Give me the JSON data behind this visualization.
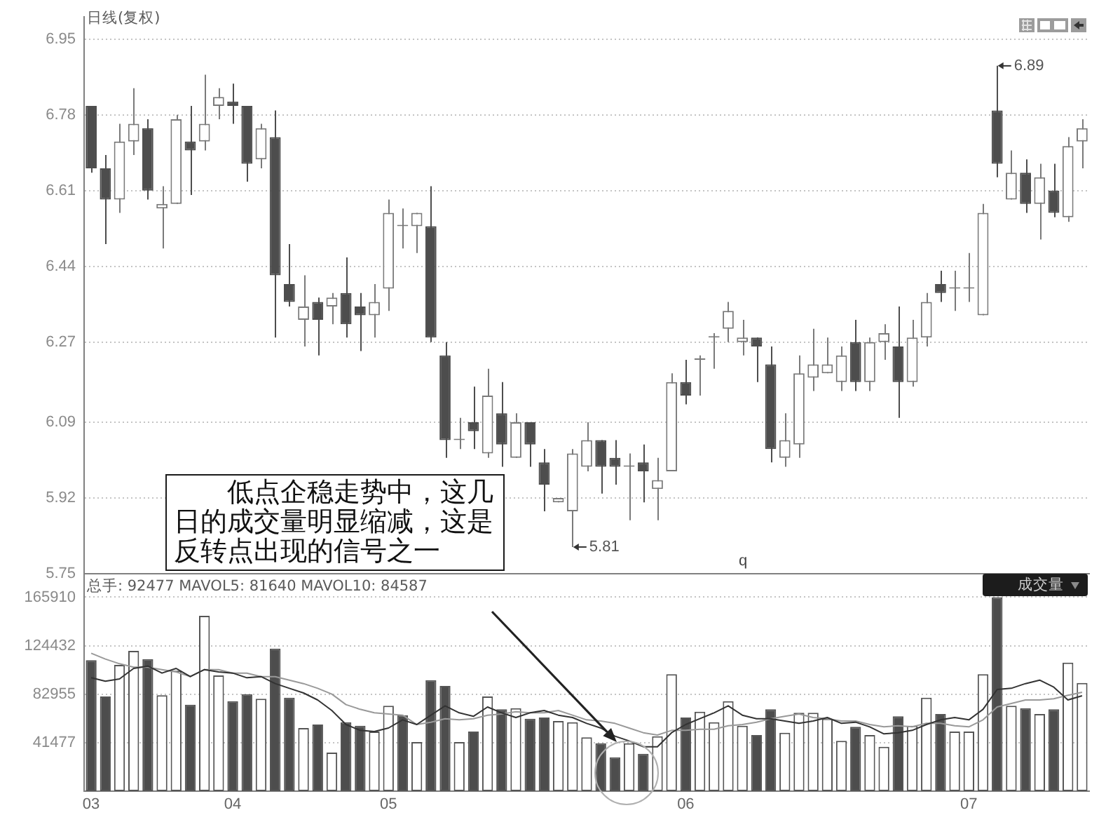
{
  "chart_data": [
    {
      "type": "candlestick",
      "title": "日线(复权)",
      "annotations": [
        "低点企稳走势中，这几日的成交量明显缩减，这是反转点出现的信号之一",
        "q",
        "6.89",
        "5.81"
      ],
      "categories": [
        "03",
        null,
        null,
        null,
        null,
        null,
        null,
        null,
        null,
        null,
        "04",
        null,
        null,
        null,
        null,
        null,
        null,
        null,
        null,
        null,
        null,
        "05",
        null,
        null,
        null,
        null,
        null,
        null,
        null,
        null,
        null,
        null,
        null,
        null,
        null,
        null,
        null,
        null,
        null,
        null,
        null,
        null,
        "06",
        null,
        null,
        null,
        null,
        null,
        null,
        null,
        null,
        null,
        null,
        null,
        null,
        null,
        null,
        null,
        null,
        null,
        null,
        null,
        "07",
        null,
        null,
        null,
        null,
        null,
        null,
        null,
        null
      ],
      "ohlc": [
        [
          6.8,
          6.8,
          6.65,
          6.66
        ],
        [
          6.66,
          6.69,
          6.49,
          6.59
        ],
        [
          6.59,
          6.76,
          6.56,
          6.72
        ],
        [
          6.72,
          6.84,
          6.69,
          6.76
        ],
        [
          6.75,
          6.77,
          6.59,
          6.61
        ],
        [
          6.57,
          6.62,
          6.48,
          6.58
        ],
        [
          6.58,
          6.78,
          6.58,
          6.77
        ],
        [
          6.72,
          6.8,
          6.6,
          6.7
        ],
        [
          6.72,
          6.87,
          6.7,
          6.76
        ],
        [
          6.8,
          6.84,
          6.77,
          6.82
        ],
        [
          6.81,
          6.85,
          6.76,
          6.8
        ],
        [
          6.8,
          6.8,
          6.63,
          6.67
        ],
        [
          6.68,
          6.76,
          6.66,
          6.75
        ],
        [
          6.73,
          6.79,
          6.28,
          6.42
        ],
        [
          6.4,
          6.49,
          6.35,
          6.36
        ],
        [
          6.32,
          6.42,
          6.26,
          6.35
        ],
        [
          6.36,
          6.37,
          6.24,
          6.32
        ],
        [
          6.35,
          6.38,
          6.31,
          6.37
        ],
        [
          6.38,
          6.46,
          6.28,
          6.31
        ],
        [
          6.35,
          6.38,
          6.25,
          6.33
        ],
        [
          6.33,
          6.4,
          6.28,
          6.36
        ],
        [
          6.39,
          6.59,
          6.34,
          6.56
        ],
        [
          6.53,
          6.57,
          6.48,
          6.53
        ],
        [
          6.53,
          6.56,
          6.47,
          6.56
        ],
        [
          6.53,
          6.62,
          6.27,
          6.28
        ],
        [
          6.24,
          6.27,
          6.01,
          6.05
        ],
        [
          6.05,
          6.1,
          6.03,
          6.05
        ],
        [
          6.09,
          6.17,
          6.03,
          6.07
        ],
        [
          6.02,
          6.21,
          6.01,
          6.15
        ],
        [
          6.11,
          6.18,
          5.99,
          6.04
        ],
        [
          6.01,
          6.11,
          6.01,
          6.09
        ],
        [
          6.09,
          6.09,
          5.99,
          6.04
        ],
        [
          6.0,
          6.03,
          5.89,
          5.95
        ],
        [
          5.91,
          5.92,
          5.91,
          5.92
        ],
        [
          5.89,
          6.03,
          5.81,
          6.02
        ],
        [
          5.99,
          6.09,
          5.98,
          6.05
        ],
        [
          6.05,
          6.05,
          5.93,
          5.99
        ],
        [
          6.01,
          6.05,
          5.95,
          5.99
        ],
        [
          5.99,
          6.02,
          5.87,
          5.99
        ],
        [
          6.0,
          6.04,
          5.91,
          5.98
        ],
        [
          5.94,
          6.01,
          5.87,
          5.96
        ],
        [
          5.98,
          6.2,
          5.98,
          6.18
        ],
        [
          6.18,
          6.23,
          6.13,
          6.15
        ],
        [
          6.23,
          6.24,
          6.15,
          6.23
        ],
        [
          6.28,
          6.29,
          6.21,
          6.28
        ],
        [
          6.3,
          6.36,
          6.27,
          6.34
        ],
        [
          6.27,
          6.32,
          6.24,
          6.28
        ],
        [
          6.28,
          6.28,
          6.18,
          6.26
        ],
        [
          6.22,
          6.26,
          6.0,
          6.03
        ],
        [
          6.01,
          6.11,
          5.99,
          6.05
        ],
        [
          6.04,
          6.24,
          6.01,
          6.2
        ],
        [
          6.19,
          6.3,
          6.16,
          6.22
        ],
        [
          6.2,
          6.28,
          6.2,
          6.22
        ],
        [
          6.18,
          6.26,
          6.16,
          6.24
        ],
        [
          6.27,
          6.32,
          6.16,
          6.18
        ],
        [
          6.18,
          6.28,
          6.16,
          6.27
        ],
        [
          6.27,
          6.31,
          6.23,
          6.29
        ],
        [
          6.26,
          6.35,
          6.1,
          6.18
        ],
        [
          6.18,
          6.32,
          6.17,
          6.28
        ],
        [
          6.28,
          6.38,
          6.26,
          6.36
        ],
        [
          6.4,
          6.43,
          6.36,
          6.38
        ],
        [
          6.39,
          6.43,
          6.34,
          6.39
        ],
        [
          6.39,
          6.47,
          6.36,
          6.39
        ],
        [
          6.33,
          6.58,
          6.33,
          6.56
        ],
        [
          6.79,
          6.89,
          6.64,
          6.67
        ],
        [
          6.59,
          6.7,
          6.59,
          6.65
        ],
        [
          6.65,
          6.68,
          6.56,
          6.58
        ],
        [
          6.58,
          6.67,
          6.5,
          6.64
        ],
        [
          6.61,
          6.67,
          6.55,
          6.56
        ],
        [
          6.55,
          6.73,
          6.54,
          6.71
        ],
        [
          6.72,
          6.77,
          6.66,
          6.75
        ]
      ],
      "colors": [
        "#4d4d4d",
        "#4d4d4d",
        "#7a7a7a",
        "#7a7a7a",
        "#4d4d4d",
        "#7a7a7a",
        "#7a7a7a",
        "#4d4d4d",
        "#7a7a7a",
        "#7a7a7a",
        "#4d4d4d",
        "#4d4d4d",
        "#7a7a7a",
        "#4d4d4d",
        "#4d4d4d",
        "#7a7a7a",
        "#4d4d4d",
        "#7a7a7a",
        "#4d4d4d",
        "#4d4d4d",
        "#7a7a7a",
        "#7a7a7a",
        "#7a7a7a",
        "#7a7a7a",
        "#4d4d4d",
        "#4d4d4d",
        "#7a7a7a",
        "#4d4d4d",
        "#7a7a7a",
        "#4d4d4d",
        "#7a7a7a",
        "#4d4d4d",
        "#4d4d4d",
        "#7a7a7a",
        "#7a7a7a",
        "#7a7a7a",
        "#4d4d4d",
        "#4d4d4d",
        "#7a7a7a",
        "#4d4d4d",
        "#7a7a7a",
        "#7a7a7a",
        "#4d4d4d",
        "#7a7a7a",
        "#7a7a7a",
        "#7a7a7a",
        "#7a7a7a",
        "#4d4d4d",
        "#4d4d4d",
        "#7a7a7a",
        "#7a7a7a",
        "#7a7a7a",
        "#7a7a7a",
        "#7a7a7a",
        "#4d4d4d",
        "#7a7a7a",
        "#7a7a7a",
        "#4d4d4d",
        "#7a7a7a",
        "#7a7a7a",
        "#4d4d4d",
        "#7a7a7a",
        "#7a7a7a",
        "#7a7a7a",
        "#4d4d4d",
        "#7a7a7a",
        "#4d4d4d",
        "#7a7a7a",
        "#4d4d4d",
        "#7a7a7a",
        "#7a7a7a"
      ],
      "ylim": [
        5.75,
        7.0
      ],
      "yticks": [
        5.75,
        5.92,
        6.09,
        6.27,
        6.44,
        6.61,
        6.78,
        6.95
      ],
      "grid": "y",
      "tick_labels": "y"
    },
    {
      "type": "bar",
      "subtitle": "总手: 92477 MAVOL5: 81640 MAVOL10: 84587",
      "annotations": [
        "成交量"
      ],
      "categories": [
        "03",
        null,
        null,
        null,
        null,
        null,
        null,
        null,
        null,
        null,
        "04",
        null,
        null,
        null,
        null,
        null,
        null,
        null,
        null,
        null,
        null,
        "05",
        null,
        null,
        null,
        null,
        null,
        null,
        null,
        null,
        null,
        null,
        null,
        null,
        null,
        null,
        null,
        null,
        null,
        null,
        null,
        null,
        "06",
        null,
        null,
        null,
        null,
        null,
        null,
        null,
        null,
        null,
        null,
        null,
        null,
        null,
        null,
        null,
        null,
        null,
        null,
        null,
        "07",
        null,
        null,
        null,
        null,
        null,
        null,
        null,
        null
      ],
      "series": [
        {
          "type": "bar",
          "values": [
            112000,
            81000,
            108000,
            120000,
            113000,
            82000,
            103000,
            74000,
            150000,
            99000,
            77000,
            83000,
            79000,
            122000,
            80000,
            54000,
            57000,
            33000,
            59000,
            56000,
            51000,
            73000,
            65000,
            42000,
            95000,
            90000,
            42000,
            51000,
            81000,
            70000,
            71000,
            62000,
            63000,
            60000,
            59000,
            46000,
            41000,
            29000,
            41000,
            32000,
            47000,
            100000,
            63000,
            68000,
            59000,
            77000,
            56000,
            48000,
            70000,
            50000,
            67000,
            67000,
            62000,
            43000,
            55000,
            48000,
            38000,
            64000,
            56000,
            80000,
            66000,
            51000,
            51000,
            100000,
            165910,
            73000,
            71000,
            66000,
            70000,
            110000,
            92477
          ],
          "colors": [
            "#4d4d4d",
            "#4d4d4d",
            "#ffffff",
            "#ffffff",
            "#4d4d4d",
            "#ffffff",
            "#ffffff",
            "#4d4d4d",
            "#ffffff",
            "#ffffff",
            "#4d4d4d",
            "#4d4d4d",
            "#ffffff",
            "#4d4d4d",
            "#4d4d4d",
            "#ffffff",
            "#4d4d4d",
            "#ffffff",
            "#4d4d4d",
            "#4d4d4d",
            "#ffffff",
            "#ffffff",
            "#4d4d4d",
            "#ffffff",
            "#4d4d4d",
            "#4d4d4d",
            "#ffffff",
            "#4d4d4d",
            "#ffffff",
            "#4d4d4d",
            "#ffffff",
            "#4d4d4d",
            "#4d4d4d",
            "#ffffff",
            "#ffffff",
            "#ffffff",
            "#4d4d4d",
            "#4d4d4d",
            "#ffffff",
            "#4d4d4d",
            "#ffffff",
            "#ffffff",
            "#4d4d4d",
            "#ffffff",
            "#ffffff",
            "#ffffff",
            "#ffffff",
            "#4d4d4d",
            "#4d4d4d",
            "#ffffff",
            "#ffffff",
            "#ffffff",
            "#ffffff",
            "#ffffff",
            "#4d4d4d",
            "#ffffff",
            "#ffffff",
            "#4d4d4d",
            "#ffffff",
            "#ffffff",
            "#4d4d4d",
            "#ffffff",
            "#ffffff",
            "#ffffff",
            "#4d4d4d",
            "#ffffff",
            "#4d4d4d",
            "#ffffff",
            "#4d4d4d",
            "#ffffff",
            "#ffffff"
          ]
        },
        {
          "type": "line",
          "color": "#333333",
          "values": [
            97000,
            94000,
            96000,
            105000,
            107000,
            101000,
            105000,
            98000,
            104000,
            102000,
            101000,
            97000,
            98000,
            92000,
            88000,
            84000,
            78000,
            69000,
            57000,
            52000,
            51000,
            54000,
            61000,
            57000,
            65000,
            73000,
            67000,
            64000,
            72000,
            67000,
            63000,
            67000,
            69000,
            65000,
            63000,
            58000,
            54000,
            47000,
            43000,
            38000,
            38000,
            50000,
            57000,
            62000,
            67000,
            73000,
            65000,
            62000,
            62000,
            60000,
            58000,
            60000,
            63000,
            58000,
            59000,
            55000,
            49000,
            50000,
            52000,
            57000,
            61000,
            63000,
            61000,
            70000,
            87000,
            88000,
            92000,
            95000,
            89000,
            78000,
            81640
          ]
        },
        {
          "type": "line",
          "color": "#999999",
          "values": [
            118000,
            113000,
            109000,
            106000,
            106000,
            104000,
            102000,
            98000,
            104000,
            104000,
            101000,
            101000,
            98000,
            98000,
            95000,
            92000,
            88000,
            83000,
            74000,
            70000,
            67000,
            66000,
            65000,
            57000,
            59000,
            62000,
            61000,
            62000,
            65000,
            66000,
            68000,
            67000,
            67000,
            69000,
            65000,
            61000,
            60000,
            58000,
            54000,
            50000,
            48000,
            52000,
            52000,
            53000,
            53000,
            56000,
            57000,
            59000,
            62000,
            64000,
            66000,
            63000,
            62000,
            60000,
            60000,
            57000,
            55000,
            56000,
            55000,
            58000,
            58000,
            56000,
            55000,
            61000,
            72000,
            75000,
            78000,
            78000,
            79000,
            82000,
            84587
          ]
        }
      ],
      "ylim": [
        0,
        186000
      ],
      "yticks": [
        41477,
        82955,
        124432,
        165910
      ],
      "grid": "y",
      "marker": "none",
      "line_style": "solid"
    }
  ]
}
